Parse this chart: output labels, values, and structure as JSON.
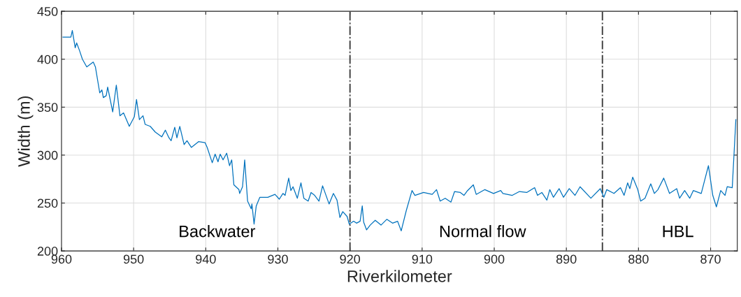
{
  "chart_data": {
    "type": "line",
    "xlabel": "Riverkilometer",
    "ylabel": "Width (m)",
    "xlim": [
      960,
      866.3
    ],
    "ylim": [
      200,
      450
    ],
    "xticks": [
      960,
      950,
      940,
      930,
      920,
      910,
      900,
      890,
      880,
      870
    ],
    "yticks": [
      200,
      250,
      300,
      350,
      400,
      450
    ],
    "grid": true,
    "marker": "none",
    "line_style": "solid",
    "series": [
      {
        "color": "#0072bd",
        "x": [
          959.8,
          958.7,
          958.5,
          958.1,
          957.9,
          957.5,
          957.1,
          956.5,
          955.6,
          955.3,
          954.7,
          954.4,
          954.2,
          953.8,
          953.6,
          952.9,
          952.4,
          951.9,
          951.4,
          950.6,
          949.9,
          949.6,
          949.2,
          948.7,
          948.4,
          947.7,
          947.0,
          946.1,
          945.6,
          945.1,
          944.8,
          944.3,
          944.0,
          943.6,
          943.0,
          942.6,
          942.0,
          941.0,
          940.1,
          939.8,
          939.1,
          938.7,
          938.3,
          938.0,
          937.6,
          937.1,
          936.7,
          936.4,
          936.1,
          935.4,
          935.3,
          934.9,
          934.6,
          934.2,
          933.7,
          933.6,
          933.3,
          933.0,
          932.5,
          931.4,
          930.4,
          929.8,
          929.3,
          929.0,
          928.5,
          928.2,
          927.9,
          927.3,
          926.8,
          926.4,
          925.8,
          925.4,
          924.9,
          924.3,
          923.8,
          922.9,
          922.3,
          921.8,
          921.4,
          921.0,
          920.4,
          920.1,
          919.5,
          919.1,
          918.6,
          918.3,
          918.1,
          917.7,
          917.2,
          916.5,
          915.7,
          914.9,
          914.1,
          913.4,
          912.9,
          912.2,
          911.4,
          911.0,
          909.8,
          908.6,
          908.0,
          907.5,
          906.8,
          906.0,
          905.5,
          904.7,
          904.2,
          903.7,
          902.9,
          902.5,
          901.3,
          900.1,
          899.1,
          898.8,
          897.5,
          896.5,
          895.5,
          894.4,
          894.0,
          893.4,
          892.7,
          892.3,
          891.8,
          891.0,
          890.4,
          889.6,
          888.8,
          888.1,
          886.6,
          885.3,
          884.8,
          884.4,
          883.4,
          882.5,
          882.0,
          881.5,
          881.2,
          880.8,
          880.1,
          879.7,
          879.1,
          878.3,
          877.8,
          877.3,
          876.5,
          875.7,
          874.7,
          874.3,
          873.6,
          872.9,
          872.4,
          871.3,
          870.3,
          869.7,
          869.2,
          868.6,
          868.0,
          867.7,
          867.0,
          866.5
        ],
        "values": [
          423,
          423,
          430,
          412,
          417,
          409,
          400,
          392,
          397,
          392,
          365,
          368,
          360,
          362,
          371,
          345,
          373,
          341,
          344,
          330,
          340,
          358,
          337,
          341,
          332,
          330,
          324,
          319,
          326,
          318,
          315,
          329,
          318,
          330,
          311,
          315,
          308,
          314,
          313,
          308,
          292,
          301,
          293,
          301,
          295,
          302,
          289,
          295,
          269,
          264,
          260,
          267,
          295,
          252,
          244,
          249,
          228,
          247,
          256,
          256,
          259,
          254,
          260,
          258,
          276,
          263,
          267,
          255,
          271,
          255,
          252,
          261,
          258,
          252,
          268,
          249,
          260,
          253,
          235,
          241,
          236,
          228,
          231,
          229,
          231,
          247,
          230,
          222,
          227,
          232,
          227,
          233,
          229,
          231,
          221,
          242,
          263,
          258,
          261,
          259,
          264,
          252,
          255,
          251,
          262,
          261,
          258,
          263,
          269,
          259,
          264,
          260,
          263,
          260,
          258,
          262,
          261,
          266,
          258,
          261,
          253,
          264,
          256,
          265,
          256,
          265,
          258,
          267,
          255,
          265,
          256,
          264,
          260,
          266,
          258,
          271,
          265,
          277,
          264,
          252,
          255,
          270,
          260,
          264,
          276,
          260,
          265,
          255,
          263,
          255,
          263,
          260,
          289,
          258,
          246,
          263,
          258,
          267,
          266,
          337
        ]
      }
    ],
    "ref_lines": [
      {
        "axis": "x",
        "value": 920,
        "color": "#404040",
        "line_style": "dashdot"
      },
      {
        "axis": "x",
        "value": 885,
        "color": "#404040",
        "line_style": "dashdot"
      }
    ],
    "annotations": [
      "Backwater",
      "Normal flow",
      "HBL"
    ]
  }
}
